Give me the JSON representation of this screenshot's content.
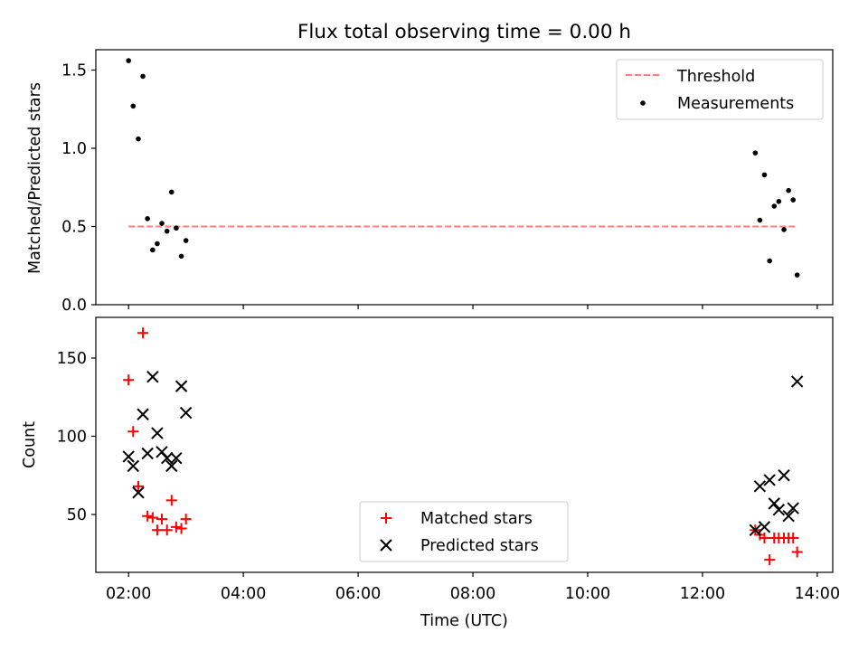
{
  "figure": {
    "title": "Flux total observing time = 0.00 h",
    "xlabel": "Time (UTC)"
  },
  "colors": {
    "threshold": "#ff7f7f",
    "measurement": "#000000",
    "matched": "#ff0000",
    "predicted": "#000000",
    "axes": "#000000",
    "background": "#ffffff"
  },
  "chart_data": [
    {
      "type": "scatter",
      "ylabel": "Matched/Predicted stars",
      "xlim": [
        1.43,
        14.27
      ],
      "ylim": [
        0,
        1.63
      ],
      "x_unit": "hours UTC",
      "xticks": [
        2,
        4,
        6,
        8,
        10,
        12,
        14
      ],
      "xtick_labels": [],
      "yticks": [
        0,
        0.5,
        1.0,
        1.5
      ],
      "ytick_labels": [
        "0.0",
        "0.5",
        "1.0",
        "1.5"
      ],
      "grid": false,
      "legend_position": "top-right",
      "threshold": {
        "name": "Threshold",
        "value": 0.5,
        "x_range": [
          2.0,
          13.65
        ],
        "style": "dashed"
      },
      "series": [
        {
          "name": "Measurements",
          "marker": "dot",
          "x": [
            2.0,
            2.08,
            2.17,
            2.25,
            2.33,
            2.42,
            2.5,
            2.58,
            2.67,
            2.75,
            2.83,
            2.92,
            3.0,
            12.92,
            13.0,
            13.08,
            13.17,
            13.25,
            13.33,
            13.42,
            13.5,
            13.58,
            13.65
          ],
          "y": [
            1.56,
            1.27,
            1.06,
            1.46,
            0.55,
            0.35,
            0.39,
            0.52,
            0.47,
            0.72,
            0.49,
            0.31,
            0.41,
            0.97,
            0.54,
            0.83,
            0.28,
            0.63,
            0.66,
            0.48,
            0.73,
            0.67,
            0.19
          ]
        }
      ]
    },
    {
      "type": "scatter",
      "ylabel": "Count",
      "xlim": [
        1.43,
        14.27
      ],
      "ylim": [
        13,
        176
      ],
      "x_unit": "hours UTC",
      "xticks": [
        2,
        4,
        6,
        8,
        10,
        12,
        14
      ],
      "xtick_labels": [
        "02:00",
        "04:00",
        "06:00",
        "08:00",
        "10:00",
        "12:00",
        "14:00"
      ],
      "yticks": [
        50,
        100,
        150
      ],
      "ytick_labels": [
        "50",
        "100",
        "150"
      ],
      "grid": false,
      "legend_position": "bottom-center",
      "series": [
        {
          "name": "Matched stars",
          "marker": "plus",
          "x": [
            2.0,
            2.08,
            2.17,
            2.25,
            2.33,
            2.42,
            2.5,
            2.58,
            2.67,
            2.75,
            2.83,
            2.92,
            3.0,
            12.92,
            13.0,
            13.08,
            13.17,
            13.25,
            13.33,
            13.42,
            13.5,
            13.58,
            13.65
          ],
          "y": [
            136,
            103,
            68,
            166,
            49,
            48,
            40,
            47,
            40,
            59,
            42,
            41,
            47,
            40,
            37,
            35,
            21,
            35,
            35,
            35,
            35,
            35,
            26
          ]
        },
        {
          "name": "Predicted stars",
          "marker": "x",
          "x": [
            2.0,
            2.08,
            2.17,
            2.25,
            2.33,
            2.42,
            2.5,
            2.58,
            2.67,
            2.75,
            2.83,
            2.92,
            3.0,
            12.92,
            13.0,
            13.08,
            13.17,
            13.25,
            13.33,
            13.42,
            13.5,
            13.58,
            13.65
          ],
          "y": [
            87,
            81,
            64,
            114,
            89,
            138,
            102,
            90,
            86,
            81,
            86,
            132,
            115,
            40,
            68,
            42,
            72,
            57,
            53,
            75,
            49,
            54,
            135
          ]
        }
      ]
    }
  ]
}
